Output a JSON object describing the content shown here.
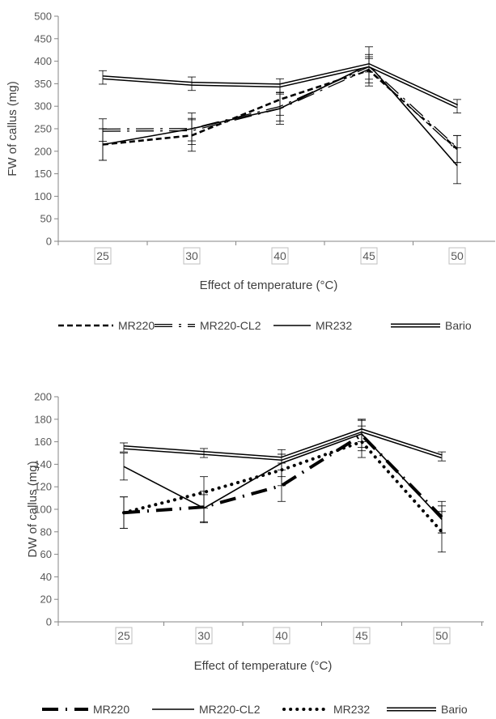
{
  "chart_data": [
    {
      "type": "line",
      "title": "",
      "xlabel": "Effect of temperature (°C)",
      "ylabel": "FW of callus (mg)",
      "categories": [
        "25",
        "30",
        "40",
        "45",
        "50"
      ],
      "ylim": [
        0,
        500
      ],
      "yticks": [
        "0",
        "50",
        "100",
        "150",
        "200",
        "250",
        "300",
        "350",
        "400",
        "450",
        "500"
      ],
      "grid": false,
      "legend_position": "bottom",
      "series": [
        {
          "name": "MR220",
          "style": "dashed",
          "values": [
            215,
            235,
            315,
            380,
            205
          ],
          "errors": [
            35,
            35,
            35,
            35,
            30
          ]
        },
        {
          "name": "MR220-CL2",
          "style": "dash-dot-double",
          "values": [
            247,
            248,
            297,
            385,
            205
          ],
          "errors": [
            25,
            25,
            30,
            25,
            30
          ]
        },
        {
          "name": "MR232",
          "style": "solid",
          "values": [
            215,
            250,
            295,
            392,
            168
          ],
          "errors": [
            35,
            35,
            35,
            40,
            40
          ]
        },
        {
          "name": "Bario",
          "style": "double",
          "values": [
            364,
            350,
            346,
            391,
            300
          ],
          "errors": [
            15,
            15,
            15,
            15,
            15
          ]
        }
      ]
    },
    {
      "type": "line",
      "title": "",
      "xlabel": "Effect of temperature (°C)",
      "ylabel": "DW of callus (mg)",
      "categories": [
        "25",
        "30",
        "40",
        "45",
        "50"
      ],
      "ylim": [
        0,
        200
      ],
      "yticks": [
        "0",
        "20",
        "40",
        "60",
        "80",
        "100",
        "120",
        "140",
        "160",
        "180",
        "200"
      ],
      "grid": false,
      "legend_position": "bottom",
      "series": [
        {
          "name": "MR220",
          "style": "long-dash-dot",
          "values": [
            97,
            102,
            121,
            166,
            93
          ],
          "errors": [
            14,
            14,
            14,
            14,
            14
          ]
        },
        {
          "name": "MR220-CL2",
          "style": "solid",
          "values": [
            138,
            101,
            141,
            167,
            91
          ],
          "errors": [
            12,
            12,
            12,
            12,
            12
          ]
        },
        {
          "name": "MR232",
          "style": "dotted",
          "values": [
            97,
            115,
            135,
            160,
            80
          ],
          "errors": [
            14,
            14,
            14,
            14,
            18
          ]
        },
        {
          "name": "Bario",
          "style": "double",
          "values": [
            155,
            150,
            145,
            170,
            147
          ],
          "errors": [
            4,
            4,
            4,
            10,
            4
          ]
        }
      ]
    }
  ],
  "colors": {
    "line": "#000000",
    "axis": "#868686",
    "text": "#595959",
    "double_fill": "#ffffff"
  }
}
